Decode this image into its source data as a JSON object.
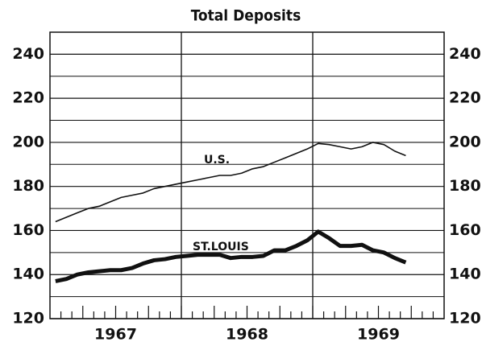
{
  "chart_data": {
    "type": "line",
    "title": "Total Deposits",
    "x": [
      1967.042,
      1967.125,
      1967.208,
      1967.292,
      1967.375,
      1967.458,
      1967.542,
      1967.625,
      1967.708,
      1967.792,
      1967.875,
      1967.958,
      1968.042,
      1968.125,
      1968.208,
      1968.292,
      1968.375,
      1968.458,
      1968.542,
      1968.625,
      1968.708,
      1968.792,
      1968.875,
      1968.958,
      1969.042,
      1969.125,
      1969.208,
      1969.292,
      1969.375,
      1969.458,
      1969.542,
      1969.625,
      1969.708
    ],
    "series": [
      {
        "name": "U.S.",
        "color": "#111111",
        "width": 1.6,
        "values": [
          164,
          166,
          168,
          170,
          171,
          173,
          175,
          176,
          177,
          179,
          180,
          181,
          182,
          183,
          184,
          185,
          185,
          186,
          188,
          189,
          191,
          193,
          195,
          197,
          199.5,
          199,
          198,
          197,
          198,
          200,
          199,
          196,
          194
        ]
      },
      {
        "name": "ST.LOUIS",
        "color": "#111111",
        "width": 5,
        "values": [
          137,
          138,
          140,
          141,
          141.5,
          142,
          142,
          143,
          145,
          146.5,
          147,
          148,
          148.5,
          149,
          149,
          149,
          147.5,
          148,
          148,
          148.5,
          151,
          151,
          153,
          155.5,
          159.5,
          156.5,
          153,
          153,
          153.5,
          151,
          150,
          147.5,
          145.5
        ]
      }
    ],
    "annotations": [
      {
        "text": "U.S.",
        "x": 1968.27,
        "y": 192
      },
      {
        "text": "ST.LOUIS",
        "x": 1968.3,
        "y": 152.5
      }
    ],
    "xlim": [
      1967,
      1970
    ],
    "xticks": [
      {
        "value": 1967,
        "label": "1967"
      },
      {
        "value": 1968,
        "label": "1968"
      },
      {
        "value": 1969,
        "label": "1969"
      }
    ],
    "ylim": [
      120,
      250
    ],
    "yticks": [
      120,
      140,
      160,
      180,
      200,
      220,
      240
    ],
    "y_minor_ticks": [
      130,
      150,
      170,
      190,
      210,
      230
    ],
    "grid": true
  }
}
